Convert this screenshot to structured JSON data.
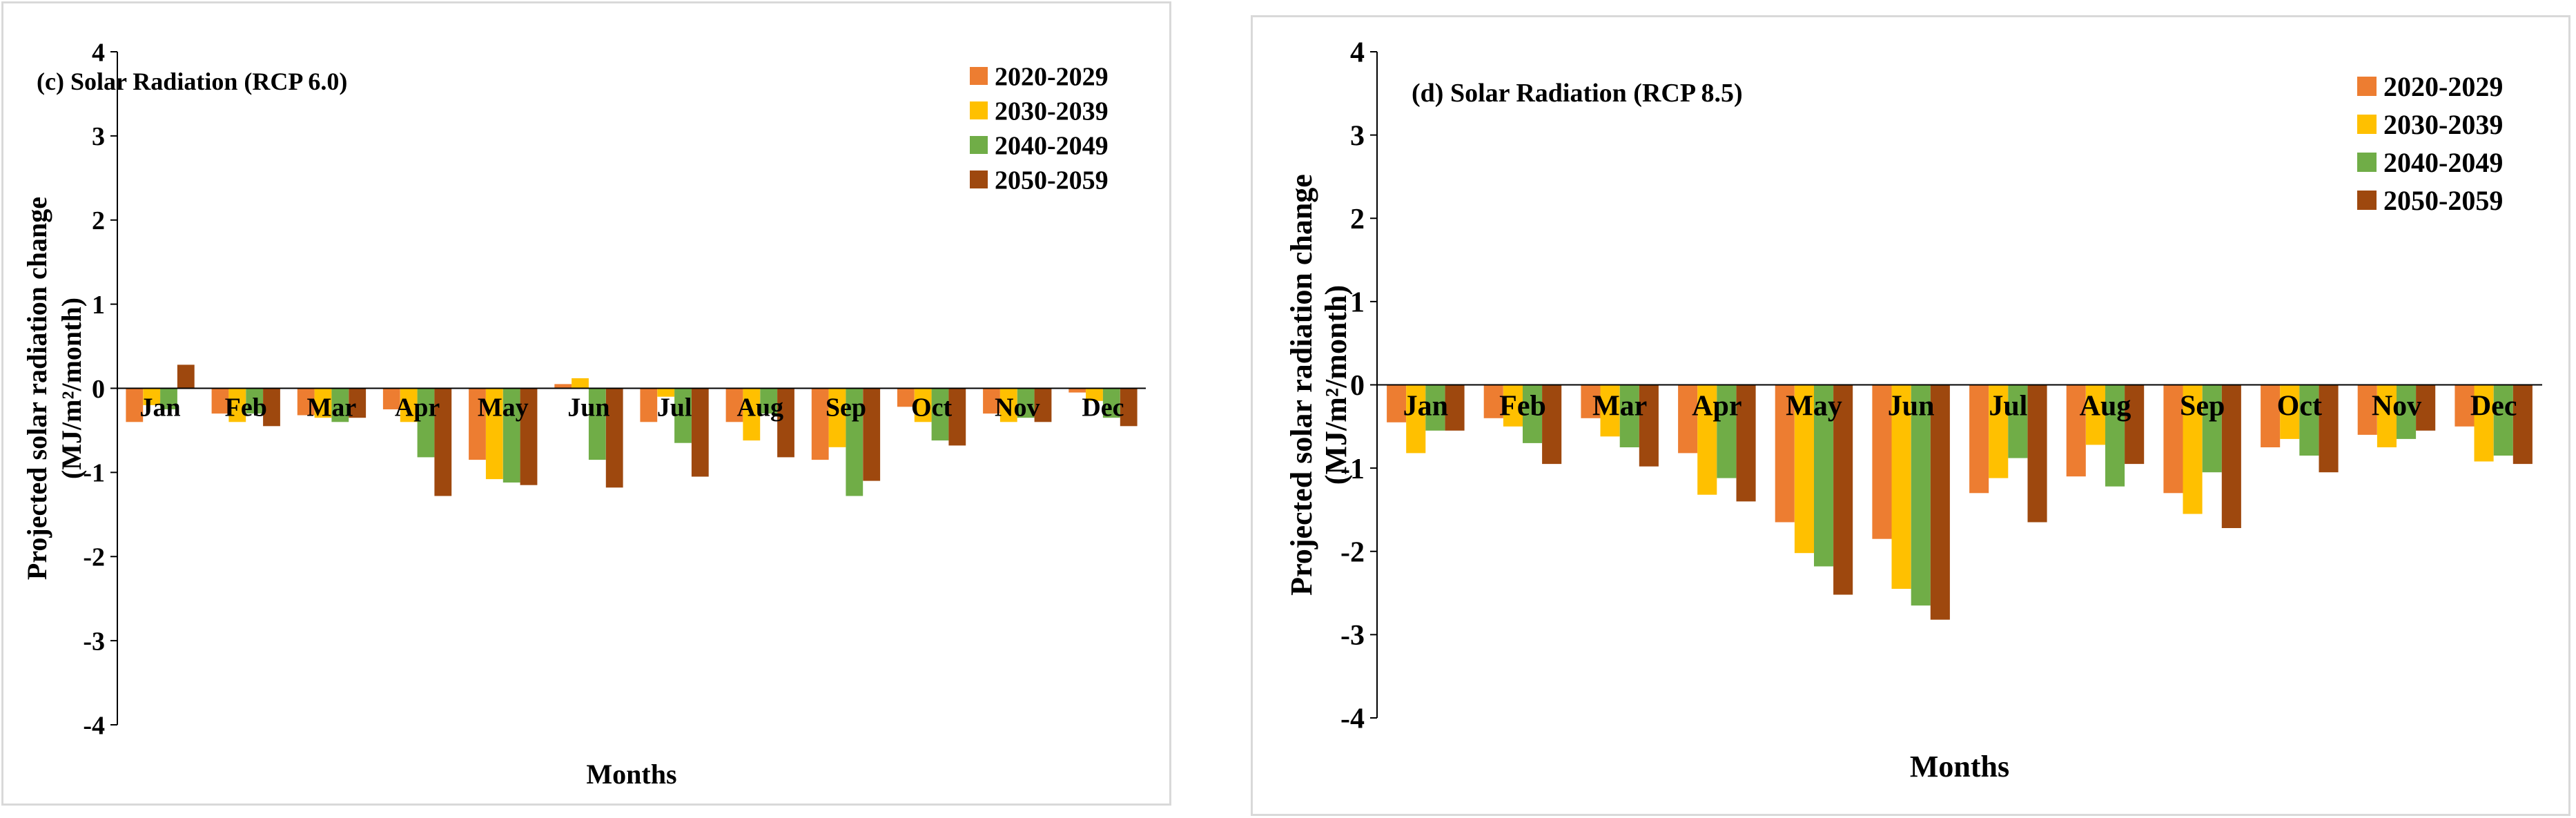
{
  "chart_data": [
    {
      "type": "bar",
      "title": "(c) Solar Radiation (RCP 6.0)",
      "xlabel": "Months",
      "ylabel": [
        "Projected solar radiation change",
        "(MJ/m²/month)"
      ],
      "ylim": [
        -4,
        4
      ],
      "yticks": [
        4,
        3,
        2,
        1,
        0,
        -1,
        -2,
        -3,
        -4
      ],
      "grid": false,
      "legend_position": "top-right",
      "categories": [
        "Jan",
        "Feb",
        "Mar",
        "Apr",
        "May",
        "Jun",
        "Jul",
        "Aug",
        "Sep",
        "Oct",
        "Nov",
        "Dec"
      ],
      "series": [
        {
          "name": "2020-2029",
          "color": "#ed7d31",
          "values": [
            -0.4,
            -0.3,
            -0.32,
            -0.25,
            -0.85,
            0.05,
            -0.4,
            -0.4,
            -0.85,
            -0.22,
            -0.3,
            -0.05
          ]
        },
        {
          "name": "2030-2039",
          "color": "#ffc000",
          "values": [
            -0.2,
            -0.4,
            -0.35,
            -0.4,
            -1.08,
            0.12,
            -0.1,
            -0.62,
            -0.7,
            -0.4,
            -0.4,
            -0.15
          ]
        },
        {
          "name": "2040-2049",
          "color": "#70ad47",
          "values": [
            -0.25,
            -0.3,
            -0.4,
            -0.82,
            -1.12,
            -0.85,
            -0.65,
            -0.3,
            -1.28,
            -0.62,
            -0.35,
            -0.35
          ]
        },
        {
          "name": "2050-2059",
          "color": "#9e480e",
          "values": [
            0.28,
            -0.45,
            -0.35,
            -1.28,
            -1.15,
            -1.18,
            -1.05,
            -0.82,
            -1.1,
            -0.68,
            -0.4,
            -0.45
          ]
        }
      ]
    },
    {
      "type": "bar",
      "title": "(d) Solar Radiation (RCP 8.5)",
      "xlabel": "Months",
      "ylabel": [
        "Projected solar radiation change",
        "(MJ/m²/month)"
      ],
      "ylim": [
        -4,
        4
      ],
      "yticks": [
        4,
        3,
        2,
        1,
        0,
        -1,
        -2,
        -3,
        -4
      ],
      "grid": false,
      "legend_position": "top-right",
      "categories": [
        "Jan",
        "Feb",
        "Mar",
        "Apr",
        "May",
        "Jun",
        "Jul",
        "Aug",
        "Sep",
        "Oct",
        "Nov",
        "Dec"
      ],
      "series": [
        {
          "name": "2020-2029",
          "color": "#ed7d31",
          "values": [
            -0.45,
            -0.4,
            -0.4,
            -0.82,
            -1.65,
            -1.85,
            -1.3,
            -1.1,
            -1.3,
            -0.75,
            -0.6,
            -0.5
          ]
        },
        {
          "name": "2030-2039",
          "color": "#ffc000",
          "values": [
            -0.82,
            -0.5,
            -0.62,
            -1.32,
            -2.02,
            -2.45,
            -1.12,
            -0.72,
            -1.55,
            -0.65,
            -0.75,
            -0.92
          ]
        },
        {
          "name": "2040-2049",
          "color": "#70ad47",
          "values": [
            -0.55,
            -0.7,
            -0.75,
            -1.12,
            -2.18,
            -2.65,
            -0.88,
            -1.22,
            -1.05,
            -0.85,
            -0.65,
            -0.85
          ]
        },
        {
          "name": "2050-2059",
          "color": "#9e480e",
          "values": [
            -0.55,
            -0.95,
            -0.98,
            -1.4,
            -2.52,
            -2.82,
            -1.65,
            -0.95,
            -1.72,
            -1.05,
            -0.55,
            -0.95
          ]
        }
      ]
    }
  ]
}
